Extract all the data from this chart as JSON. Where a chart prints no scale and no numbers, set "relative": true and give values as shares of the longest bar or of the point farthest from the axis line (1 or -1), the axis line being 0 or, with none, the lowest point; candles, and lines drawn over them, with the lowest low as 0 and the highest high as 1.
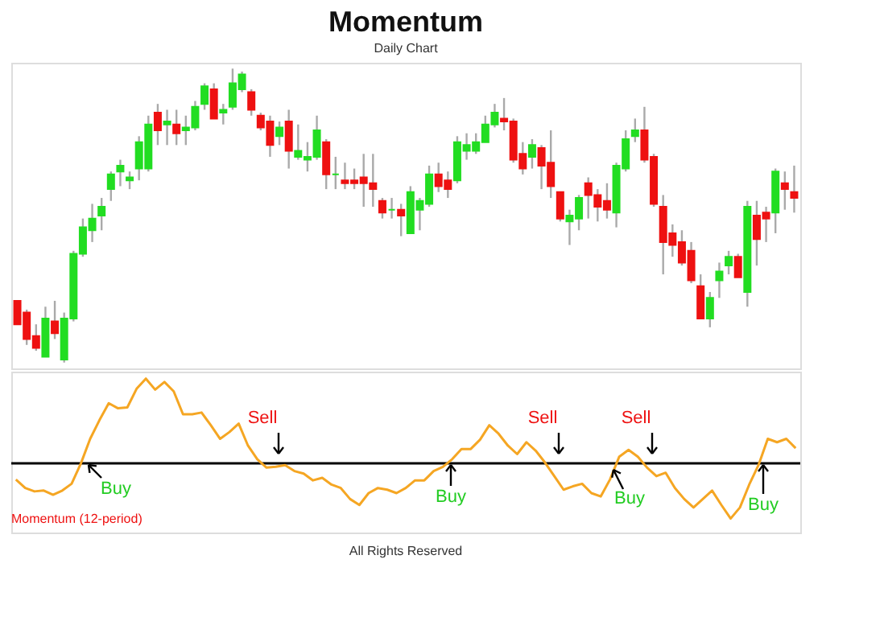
{
  "chart_data": [
    {
      "type": "candlestick",
      "title": "Momentum",
      "subtitle": "Daily Chart",
      "relative": true,
      "categories": [
        null,
        null,
        null,
        null,
        null,
        null,
        null,
        null,
        null,
        null,
        null,
        null,
        null,
        null,
        null,
        null,
        null,
        null,
        null,
        null,
        null,
        null,
        null,
        null,
        null,
        null,
        null,
        null,
        null,
        null,
        null,
        null,
        null,
        null,
        null,
        null,
        null,
        null,
        null,
        null,
        null,
        null,
        null,
        null,
        null,
        null,
        null,
        null,
        null,
        null,
        null,
        null,
        null,
        null,
        null,
        null,
        null,
        null,
        null,
        null,
        null,
        null,
        null,
        null,
        null,
        null,
        null,
        null,
        null,
        null,
        null,
        null,
        null,
        null,
        null,
        null,
        null,
        null,
        null,
        null,
        null,
        null,
        null,
        null
      ],
      "ohlc": [
        [
          0.21,
          0.21,
          0.13,
          0.13
        ],
        [
          0.17,
          0.18,
          0.06,
          0.08
        ],
        [
          0.09,
          0.13,
          0.04,
          0.05
        ],
        [
          0.02,
          0.19,
          0.02,
          0.15
        ],
        [
          0.14,
          0.21,
          0.08,
          0.1
        ],
        [
          0.01,
          0.17,
          0,
          0.15
        ],
        [
          0.15,
          0.38,
          0.14,
          0.37
        ],
        [
          0.37,
          0.49,
          0.36,
          0.46
        ],
        [
          0.45,
          0.54,
          0.41,
          0.49
        ],
        [
          0.5,
          0.56,
          0.45,
          0.53
        ],
        [
          0.59,
          0.65,
          0.55,
          0.64
        ],
        [
          0.65,
          0.69,
          0.6,
          0.67
        ],
        [
          0.62,
          0.65,
          0.59,
          0.63
        ],
        [
          0.66,
          0.77,
          0.62,
          0.75
        ],
        [
          0.66,
          0.84,
          0.65,
          0.81
        ],
        [
          0.85,
          0.88,
          0.74,
          0.79
        ],
        [
          0.81,
          0.86,
          0.74,
          0.82
        ],
        [
          0.81,
          0.86,
          0.74,
          0.78
        ],
        [
          0.79,
          0.84,
          0.74,
          0.8
        ],
        [
          0.8,
          0.89,
          0.79,
          0.87
        ],
        [
          0.88,
          0.95,
          0.86,
          0.94
        ],
        [
          0.93,
          0.95,
          0.83,
          0.83
        ],
        [
          0.85,
          0.88,
          0.81,
          0.86
        ],
        [
          0.87,
          1,
          0.86,
          0.95
        ],
        [
          0.93,
          0.99,
          0.92,
          0.98
        ],
        [
          0.92,
          0.93,
          0.84,
          0.86
        ],
        [
          0.84,
          0.85,
          0.79,
          0.8
        ],
        [
          0.82,
          0.84,
          0.7,
          0.74
        ],
        [
          0.77,
          0.82,
          0.74,
          0.8
        ],
        [
          0.82,
          0.86,
          0.66,
          0.72
        ],
        [
          0.7,
          0.81,
          0.69,
          0.72
        ],
        [
          0.69,
          0.75,
          0.65,
          0.7
        ],
        [
          0.7,
          0.84,
          0.69,
          0.79
        ],
        [
          0.75,
          0.76,
          0.59,
          0.64
        ],
        [
          0.64,
          0.7,
          0.59,
          0.64
        ],
        [
          0.62,
          0.68,
          0.59,
          0.61
        ],
        [
          0.62,
          0.66,
          0.59,
          0.61
        ],
        [
          0.63,
          0.71,
          0.53,
          0.61
        ],
        [
          0.61,
          0.71,
          0.53,
          0.59
        ],
        [
          0.55,
          0.56,
          0.49,
          0.51
        ],
        [
          0.52,
          0.56,
          0.49,
          0.52
        ],
        [
          0.52,
          0.54,
          0.43,
          0.5
        ],
        [
          0.44,
          0.6,
          0.44,
          0.58
        ],
        [
          0.52,
          0.56,
          0.45,
          0.55
        ],
        [
          0.54,
          0.67,
          0.53,
          0.64
        ],
        [
          0.64,
          0.68,
          0.58,
          0.6
        ],
        [
          0.62,
          0.65,
          0.56,
          0.59
        ],
        [
          0.62,
          0.77,
          0.61,
          0.75
        ],
        [
          0.72,
          0.78,
          0.69,
          0.74
        ],
        [
          0.72,
          0.78,
          0.71,
          0.75
        ],
        [
          0.75,
          0.84,
          0.75,
          0.81
        ],
        [
          0.81,
          0.88,
          0.8,
          0.85
        ],
        [
          0.83,
          0.9,
          0.79,
          0.82
        ],
        [
          0.82,
          0.83,
          0.68,
          0.69
        ],
        [
          0.71,
          0.75,
          0.64,
          0.66
        ],
        [
          0.7,
          0.76,
          0.66,
          0.74
        ],
        [
          0.73,
          0.74,
          0.59,
          0.67
        ],
        [
          0.68,
          0.79,
          0.56,
          0.6
        ],
        [
          0.58,
          0.58,
          0.48,
          0.49
        ],
        [
          0.48,
          0.52,
          0.4,
          0.5
        ],
        [
          0.49,
          0.57,
          0.45,
          0.56
        ],
        [
          0.61,
          0.63,
          0.49,
          0.57
        ],
        [
          0.57,
          0.59,
          0.48,
          0.53
        ],
        [
          0.55,
          0.61,
          0.49,
          0.52
        ],
        [
          0.51,
          0.68,
          0.46,
          0.67
        ],
        [
          0.66,
          0.79,
          0.65,
          0.76
        ],
        [
          0.77,
          0.83,
          0.75,
          0.79
        ],
        [
          0.79,
          0.87,
          0.68,
          0.69
        ],
        [
          0.7,
          0.71,
          0.53,
          0.54
        ],
        [
          0.53,
          0.57,
          0.3,
          0.41
        ],
        [
          0.44,
          0.47,
          0.36,
          0.4
        ],
        [
          0.41,
          0.45,
          0.33,
          0.34
        ],
        [
          0.38,
          0.41,
          0.27,
          0.28
        ],
        [
          0.26,
          0.3,
          0.15,
          0.15
        ],
        [
          0.15,
          0.24,
          0.12,
          0.22
        ],
        [
          0.28,
          0.34,
          0.22,
          0.31
        ],
        [
          0.33,
          0.38,
          0.3,
          0.36
        ],
        [
          0.36,
          0.37,
          0.29,
          0.29
        ],
        [
          0.24,
          0.55,
          0.19,
          0.53
        ],
        [
          0.5,
          0.55,
          0.33,
          0.42
        ],
        [
          0.51,
          0.53,
          0.41,
          0.49
        ],
        [
          0.51,
          0.66,
          0.44,
          0.65
        ],
        [
          0.61,
          0.65,
          0.52,
          0.59
        ],
        [
          0.58,
          0.67,
          0.51,
          0.56
        ]
      ],
      "colors": [
        "#ee1111",
        "#ee1111",
        "#ee1111",
        "#22dd22",
        "#ee1111",
        "#22dd22",
        "#22dd22",
        "#22dd22",
        "#22dd22",
        "#22dd22",
        "#22dd22",
        "#22dd22",
        "#22dd22",
        "#22dd22",
        "#22dd22",
        "#ee1111",
        "#22dd22",
        "#ee1111",
        "#22dd22",
        "#22dd22",
        "#22dd22",
        "#ee1111",
        "#22dd22",
        "#22dd22",
        "#22dd22",
        "#ee1111",
        "#ee1111",
        "#ee1111",
        "#22dd22",
        "#ee1111",
        "#22dd22",
        "#22dd22",
        "#22dd22",
        "#ee1111",
        "#22dd22",
        "#ee1111",
        "#ee1111",
        "#ee1111",
        "#ee1111",
        "#ee1111",
        "#22dd22",
        "#ee1111",
        "#22dd22",
        "#22dd22",
        "#22dd22",
        "#ee1111",
        "#ee1111",
        "#22dd22",
        "#22dd22",
        "#22dd22",
        "#22dd22",
        "#22dd22",
        "#ee1111",
        "#ee1111",
        "#ee1111",
        "#22dd22",
        "#ee1111",
        "#ee1111",
        "#ee1111",
        "#22dd22",
        "#22dd22",
        "#ee1111",
        "#ee1111",
        "#ee1111",
        "#22dd22",
        "#22dd22",
        "#22dd22",
        "#ee1111",
        "#ee1111",
        "#ee1111",
        "#ee1111",
        "#ee1111",
        "#ee1111",
        "#ee1111",
        "#22dd22",
        "#22dd22",
        "#22dd22",
        "#ee1111",
        "#22dd22",
        "#ee1111",
        "#ee1111",
        "#22dd22",
        "#ee1111",
        "#ee1111"
      ]
    },
    {
      "type": "line",
      "relative": true,
      "marker": "none",
      "line_style": "solid",
      "categories": [
        null,
        null,
        null,
        null,
        null,
        null,
        null,
        null,
        null,
        null,
        null,
        null,
        null,
        null,
        null,
        null,
        null,
        null,
        null,
        null,
        null,
        null,
        null,
        null,
        null,
        null,
        null,
        null,
        null,
        null,
        null,
        null,
        null,
        null,
        null,
        null,
        null,
        null,
        null,
        null,
        null,
        null,
        null,
        null,
        null,
        null,
        null,
        null,
        null,
        null,
        null,
        null,
        null,
        null,
        null,
        null,
        null,
        null,
        null,
        null,
        null,
        null,
        null,
        null,
        null,
        null,
        null,
        null,
        null,
        null,
        null,
        null,
        null,
        null,
        null,
        null,
        null,
        null,
        null,
        null,
        null,
        null,
        null,
        null,
        null
      ],
      "series": [
        {
          "color": "#f5a623",
          "values": [
            -0.19,
            -0.29,
            -0.33,
            -0.32,
            -0.37,
            -0.32,
            -0.24,
            0,
            0.29,
            0.51,
            0.71,
            0.65,
            0.66,
            0.88,
            1,
            0.87,
            0.96,
            0.85,
            0.58,
            0.58,
            0.6,
            0.45,
            0.29,
            0.37,
            0.47,
            0.21,
            0.05,
            -0.05,
            -0.04,
            -0.02,
            -0.09,
            -0.12,
            -0.2,
            -0.17,
            -0.25,
            -0.29,
            -0.42,
            -0.49,
            -0.35,
            -0.29,
            -0.31,
            -0.35,
            -0.29,
            -0.2,
            -0.2,
            -0.09,
            -0.04,
            0.05,
            0.17,
            0.17,
            0.28,
            0.45,
            0.35,
            0.21,
            0.11,
            0.25,
            0.15,
            0.01,
            -0.15,
            -0.31,
            -0.27,
            -0.24,
            -0.35,
            -0.39,
            -0.19,
            0.08,
            0.16,
            0.08,
            -0.05,
            -0.15,
            -0.11,
            -0.29,
            -0.42,
            -0.52,
            -0.42,
            -0.32,
            -0.49,
            -0.65,
            -0.52,
            -0.25,
            -0.02,
            0.29,
            0.25,
            0.29,
            0.18
          ]
        }
      ],
      "annotations": [
        "Sell",
        "Sell",
        "Sell",
        "Buy",
        "Buy",
        "Buy",
        "Buy",
        "Momentum (12-period)",
        "All Rights Reserved"
      ]
    }
  ]
}
